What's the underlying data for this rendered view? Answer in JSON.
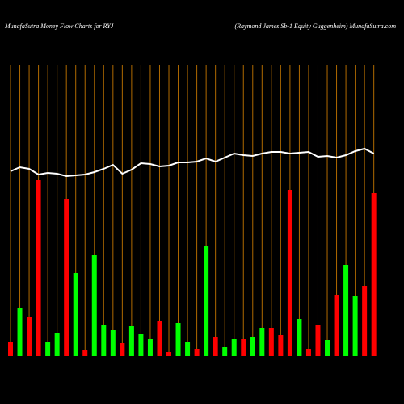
{
  "chart_data": {
    "type": "bar",
    "title": "MunafaSutra  Money Flow  Charts for RYJ",
    "subtitle": "(Raymond James Sb-1 Equity Guggenheim) MunafaSutra.com",
    "ylim": [
      0,
      360
    ],
    "grid": true,
    "grid_color": "#b06a00",
    "values": [
      17,
      59,
      48,
      217,
      17,
      28,
      194,
      102,
      7,
      125,
      38,
      31,
      15,
      37,
      27,
      20,
      43,
      4,
      40,
      17,
      8,
      135,
      23,
      11,
      20,
      20,
      23,
      34,
      34,
      25,
      205,
      45,
      8,
      38,
      19,
      75,
      112,
      74,
      86,
      201
    ],
    "colors": [
      "#ff0000",
      "#00ff00",
      "#ff0000",
      "#ff0000",
      "#00ff00",
      "#00ff00",
      "#ff0000",
      "#00ff00",
      "#ff0000",
      "#00ff00",
      "#00ff00",
      "#00ff00",
      "#ff0000",
      "#00ff00",
      "#00ff00",
      "#00ff00",
      "#ff0000",
      "#ff0000",
      "#00ff00",
      "#00ff00",
      "#ff0000",
      "#00ff00",
      "#ff0000",
      "#00ff00",
      "#00ff00",
      "#ff0000",
      "#00ff00",
      "#00ff00",
      "#ff0000",
      "#ff0000",
      "#ff0000",
      "#00ff00",
      "#ff0000",
      "#ff0000",
      "#00ff00",
      "#ff0000",
      "#00ff00",
      "#00ff00",
      "#ff0000",
      "#ff0000"
    ],
    "line_values": [
      228,
      233,
      231,
      224,
      226,
      225,
      222,
      223,
      224,
      227,
      231,
      236,
      225,
      230,
      238,
      237,
      234,
      235,
      239,
      239,
      240,
      244,
      240,
      245,
      250,
      248,
      247,
      250,
      252,
      252,
      250,
      251,
      252,
      246,
      247,
      245,
      248,
      253,
      256,
      250
    ],
    "line_color": "#ffffff"
  }
}
